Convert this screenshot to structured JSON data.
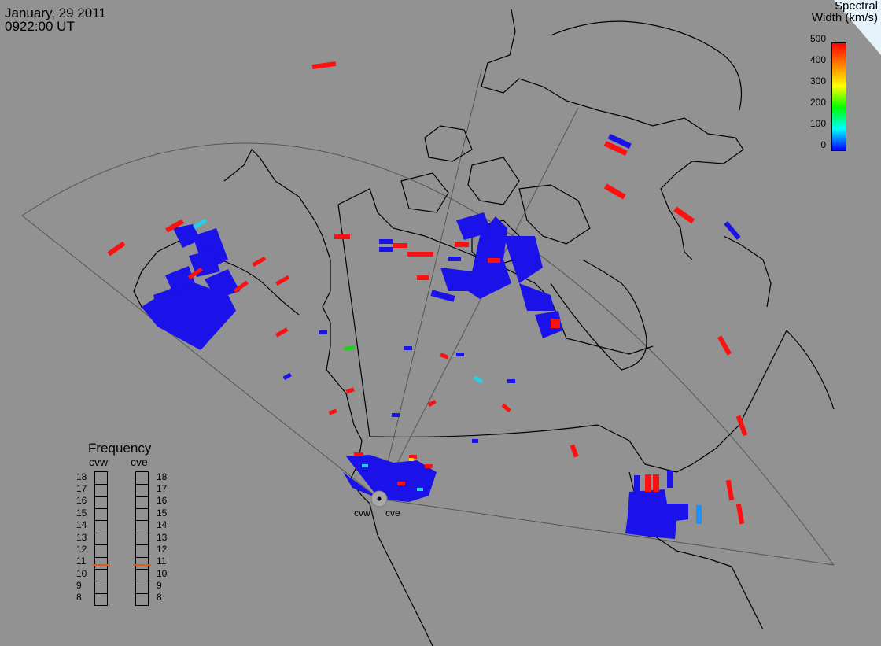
{
  "header": {
    "date": "January, 29 2011",
    "time": "0922:00 UT"
  },
  "colorbar": {
    "title_line1": "Spectral",
    "title_line2": "Width (km/s)",
    "labels": [
      "500",
      "400",
      "300",
      "200",
      "100",
      "0"
    ],
    "gradient": [
      "#ff0000",
      "#ff8000",
      "#ffff00",
      "#00ff00",
      "#00ffff",
      "#0000ff"
    ]
  },
  "frequency": {
    "title": "Frequency",
    "radars": [
      "cvw",
      "cve"
    ],
    "labels": [
      "18",
      "17",
      "16",
      "15",
      "14",
      "13",
      "12",
      "11",
      "10",
      "9",
      "8"
    ],
    "selected_mhz": [
      10.9,
      10.9
    ]
  },
  "radar_sites": [
    "cvw",
    "cve"
  ],
  "colors": {
    "background": "#929292",
    "low_width": "#1a12e8",
    "high_width": "#ff1010",
    "mid_cyan": "#22d0e8",
    "mid_green": "#19d419",
    "freq_marker": "#e05a1a"
  }
}
